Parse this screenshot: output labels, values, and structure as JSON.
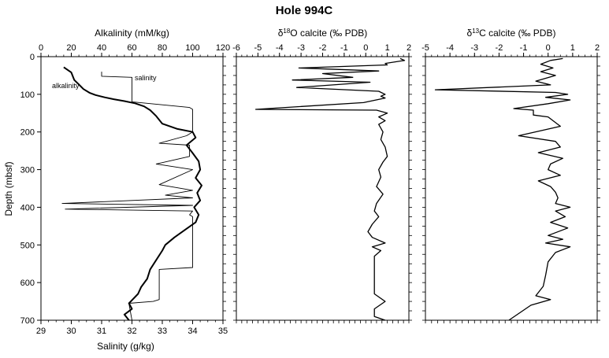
{
  "figure": {
    "title": "Hole 994C"
  },
  "chart_data": [
    {
      "id": "alkalinity-salinity",
      "type": "line",
      "title": "",
      "top_axis": {
        "label": "Alkalinity (mM/kg)",
        "range": [
          0,
          120
        ],
        "ticks": [
          0,
          20,
          40,
          60,
          80,
          100,
          120
        ]
      },
      "bottom_axis": {
        "label": "Salinity (g/kg)",
        "range": [
          29,
          35
        ],
        "ticks": [
          29,
          30,
          31,
          32,
          33,
          34,
          35
        ]
      },
      "y_axis": {
        "label": "Depth (mbsf)",
        "range": [
          0,
          700
        ],
        "reversed": true,
        "ticks": [
          0,
          100,
          200,
          300,
          400,
          500,
          600,
          700
        ]
      },
      "grid": false,
      "series": [
        {
          "name": "alkalinity",
          "axis": "top",
          "style": "thick",
          "points": [
            [
              15,
              28
            ],
            [
              20,
              42
            ],
            [
              22,
              62
            ],
            [
              25,
              74
            ],
            [
              28,
              86
            ],
            [
              32,
              96
            ],
            [
              36,
              102
            ],
            [
              42,
              108
            ],
            [
              48,
              113
            ],
            [
              55,
              118
            ],
            [
              62,
              124
            ],
            [
              68,
              132
            ],
            [
              72,
              142
            ],
            [
              76,
              158
            ],
            [
              80,
              178
            ],
            [
              90,
              192
            ],
            [
              100,
              200
            ],
            [
              102,
              215
            ],
            [
              96,
              235
            ],
            [
              100,
              256
            ],
            [
              104,
              278
            ],
            [
              105,
              300
            ],
            [
              102,
              322
            ],
            [
              106,
              342
            ],
            [
              103,
              362
            ],
            [
              105,
              382
            ],
            [
              101,
              400
            ],
            [
              104,
              420
            ],
            [
              102,
              440
            ],
            [
              95,
              460
            ],
            [
              88,
              480
            ],
            [
              82,
              500
            ],
            [
              80,
              515
            ],
            [
              76,
              540
            ],
            [
              72,
              565
            ],
            [
              70,
              590
            ],
            [
              66,
              612
            ],
            [
              64,
              630
            ],
            [
              58,
              655
            ],
            [
              60,
              670
            ],
            [
              55,
              685
            ],
            [
              58,
              700
            ]
          ]
        },
        {
          "name": "salinity",
          "axis": "bottom",
          "style": "thin",
          "points": [
            [
              31.0,
              40
            ],
            [
              31.0,
              52
            ],
            [
              32.0,
              55
            ],
            [
              32.0,
              120
            ],
            [
              33.9,
              135
            ],
            [
              34.0,
              140
            ],
            [
              34.0,
              200
            ],
            [
              33.8,
              210
            ],
            [
              32.9,
              230
            ],
            [
              33.9,
              235
            ],
            [
              33.9,
              265
            ],
            [
              32.8,
              285
            ],
            [
              34.0,
              300
            ],
            [
              32.9,
              340
            ],
            [
              34.0,
              355
            ],
            [
              33.1,
              368
            ],
            [
              34.0,
              375
            ],
            [
              29.7,
              390
            ],
            [
              34.0,
              395
            ],
            [
              29.8,
              405
            ],
            [
              34.0,
              410
            ],
            [
              33.9,
              420
            ],
            [
              34.0,
              425
            ],
            [
              34.0,
              560
            ],
            [
              32.9,
              565
            ],
            [
              32.9,
              645
            ],
            [
              32.7,
              650
            ],
            [
              31.9,
              655
            ],
            [
              32.0,
              700
            ]
          ]
        }
      ],
      "annotations": [
        "alkalinity",
        "salinity"
      ]
    },
    {
      "id": "d18o",
      "type": "line",
      "title": "δ18O calcite (‰ PDB)",
      "x_axis": {
        "label": "δ18O calcite (‰ PDB)",
        "range": [
          -6,
          2
        ],
        "ticks": [
          -6,
          -5,
          -4,
          -3,
          -2,
          -1,
          0,
          1,
          2
        ]
      },
      "y_axis": {
        "range": [
          0,
          700
        ],
        "reversed": true
      },
      "grid": false,
      "series": [
        {
          "name": "",
          "points": [
            [
              1.6,
              5
            ],
            [
              1.8,
              10
            ],
            [
              0.9,
              18
            ],
            [
              1.0,
              22
            ],
            [
              -3.1,
              30
            ],
            [
              0.6,
              38
            ],
            [
              -2.0,
              45
            ],
            [
              -0.6,
              55
            ],
            [
              -3.4,
              62
            ],
            [
              0.2,
              68
            ],
            [
              -3.2,
              82
            ],
            [
              0.6,
              92
            ],
            [
              0.9,
              100
            ],
            [
              0.7,
              105
            ],
            [
              0.9,
              110
            ],
            [
              -0.1,
              122
            ],
            [
              -5.1,
              140
            ],
            [
              0.5,
              142
            ],
            [
              1.0,
              150
            ],
            [
              0.6,
              160
            ],
            [
              0.9,
              170
            ],
            [
              0.6,
              180
            ],
            [
              0.8,
              200
            ],
            [
              0.7,
              220
            ],
            [
              0.9,
              240
            ],
            [
              1.0,
              265
            ],
            [
              0.8,
              280
            ],
            [
              0.6,
              300
            ],
            [
              0.7,
              320
            ],
            [
              0.5,
              345
            ],
            [
              0.8,
              365
            ],
            [
              0.5,
              390
            ],
            [
              0.4,
              410
            ],
            [
              0.6,
              425
            ],
            [
              0.3,
              445
            ],
            [
              0.1,
              465
            ],
            [
              0.3,
              480
            ],
            [
              0.9,
              495
            ],
            [
              0.3,
              505
            ],
            [
              0.7,
              515
            ],
            [
              0.4,
              530
            ],
            [
              0.4,
              570
            ],
            [
              0.4,
              630
            ],
            [
              0.9,
              650
            ],
            [
              0.4,
              670
            ],
            [
              0.4,
              690
            ],
            [
              0.9,
              700
            ]
          ]
        }
      ]
    },
    {
      "id": "d13c",
      "type": "line",
      "title": "δ13C calcite (‰ PDB)",
      "x_axis": {
        "label": "δ13C calcite (‰ PDB)",
        "range": [
          -5,
          2
        ],
        "ticks": [
          -5,
          -4,
          -3,
          -2,
          -1,
          0,
          1,
          2
        ]
      },
      "y_axis": {
        "range": [
          0,
          700
        ],
        "reversed": true
      },
      "grid": false,
      "series": [
        {
          "name": "",
          "points": [
            [
              0.6,
              5
            ],
            [
              0.1,
              10
            ],
            [
              -0.3,
              20
            ],
            [
              0.2,
              30
            ],
            [
              -0.3,
              40
            ],
            [
              0.3,
              50
            ],
            [
              -0.5,
              65
            ],
            [
              0.1,
              75
            ],
            [
              -4.6,
              88
            ],
            [
              0.3,
              95
            ],
            [
              0.8,
              100
            ],
            [
              -0.1,
              108
            ],
            [
              0.9,
              115
            ],
            [
              0.0,
              125
            ],
            [
              -1.4,
              138
            ],
            [
              -0.6,
              142
            ],
            [
              -0.6,
              155
            ],
            [
              0.0,
              160
            ],
            [
              0.5,
              185
            ],
            [
              -1.2,
              210
            ],
            [
              0.3,
              225
            ],
            [
              0.5,
              240
            ],
            [
              -0.4,
              255
            ],
            [
              0.6,
              270
            ],
            [
              0.1,
              285
            ],
            [
              0.0,
              300
            ],
            [
              0.5,
              315
            ],
            [
              -0.4,
              330
            ],
            [
              0.1,
              345
            ],
            [
              0.3,
              360
            ],
            [
              0.4,
              375
            ],
            [
              0.3,
              390
            ],
            [
              0.9,
              400
            ],
            [
              0.3,
              410
            ],
            [
              0.7,
              425
            ],
            [
              0.1,
              440
            ],
            [
              0.8,
              455
            ],
            [
              0.0,
              475
            ],
            [
              0.6,
              485
            ],
            [
              -0.1,
              495
            ],
            [
              0.9,
              505
            ],
            [
              0.3,
              520
            ],
            [
              0.0,
              545
            ],
            [
              -0.1,
              580
            ],
            [
              -0.2,
              610
            ],
            [
              -0.5,
              635
            ],
            [
              0.1,
              645
            ],
            [
              -0.7,
              660
            ],
            [
              -1.6,
              700
            ]
          ]
        }
      ]
    }
  ]
}
